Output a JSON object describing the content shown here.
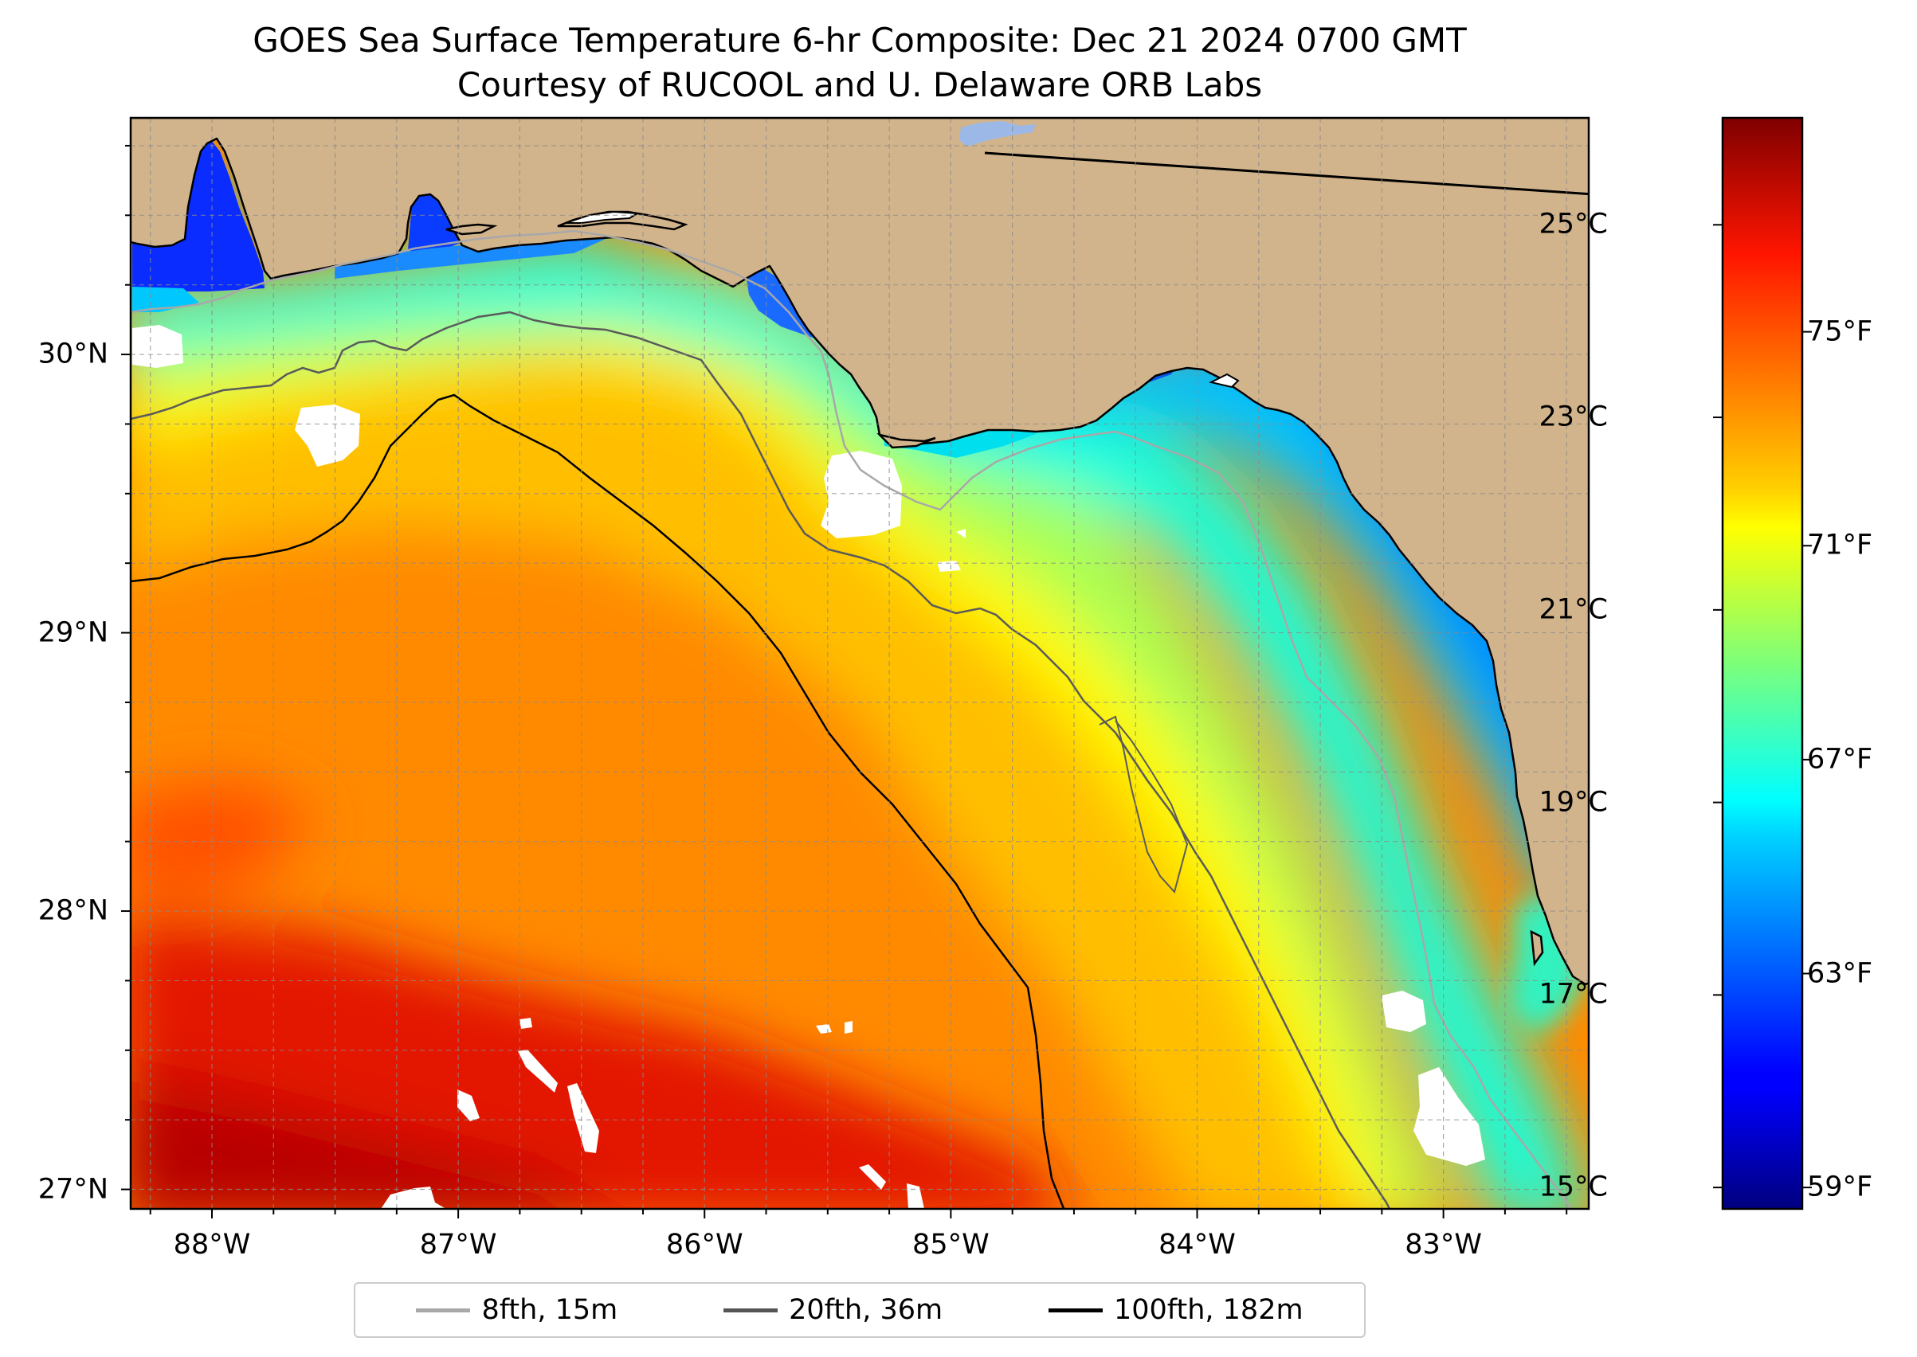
{
  "figure": {
    "title_line1": "GOES Sea Surface Temperature 6-hr Composite: Dec 21 2024 0700 GMT",
    "title_line2": "Courtesy of RUCOOL and U. Delaware ORB Labs"
  },
  "map": {
    "extent": {
      "lon_min": -88.33,
      "lon_max": -82.41,
      "lat_min": 26.93,
      "lat_max": 30.85
    },
    "x_ticks": [
      {
        "lon": -88,
        "label": "88°W"
      },
      {
        "lon": -87,
        "label": "87°W"
      },
      {
        "lon": -86,
        "label": "86°W"
      },
      {
        "lon": -85,
        "label": "85°W"
      },
      {
        "lon": -84,
        "label": "84°W"
      },
      {
        "lon": -83,
        "label": "83°W"
      }
    ],
    "y_ticks": [
      {
        "lat": 30,
        "label": "30°N"
      },
      {
        "lat": 29,
        "label": "29°N"
      },
      {
        "lat": 28,
        "label": "28°N"
      },
      {
        "lat": 27,
        "label": "27°N"
      }
    ],
    "land_color": "#d2b48c",
    "gridlines": "dashed gray, every 0.25°"
  },
  "colorbar": {
    "celsius_ticks": [
      {
        "value": 25,
        "label": "25°C"
      },
      {
        "value": 23,
        "label": "23°C"
      },
      {
        "value": 21,
        "label": "21°C"
      },
      {
        "value": 19,
        "label": "19°C"
      },
      {
        "value": 17,
        "label": "17°C"
      },
      {
        "value": 15,
        "label": "15°C"
      }
    ],
    "fahrenheit_ticks": [
      {
        "value": 75,
        "label": "75°F"
      },
      {
        "value": 71,
        "label": "71°F"
      },
      {
        "value": 67,
        "label": "67°F"
      },
      {
        "value": 63,
        "label": "63°F"
      },
      {
        "value": 59,
        "label": "59°F"
      }
    ],
    "range_f": [
      58.6,
      79.0
    ],
    "colormap": "jet"
  },
  "legend": {
    "items": [
      {
        "label": "8fth, 15m",
        "color": "#a8a8a8"
      },
      {
        "label": "20fth, 36m",
        "color": "#555555"
      },
      {
        "label": "100fth, 182m",
        "color": "#000000"
      }
    ]
  }
}
